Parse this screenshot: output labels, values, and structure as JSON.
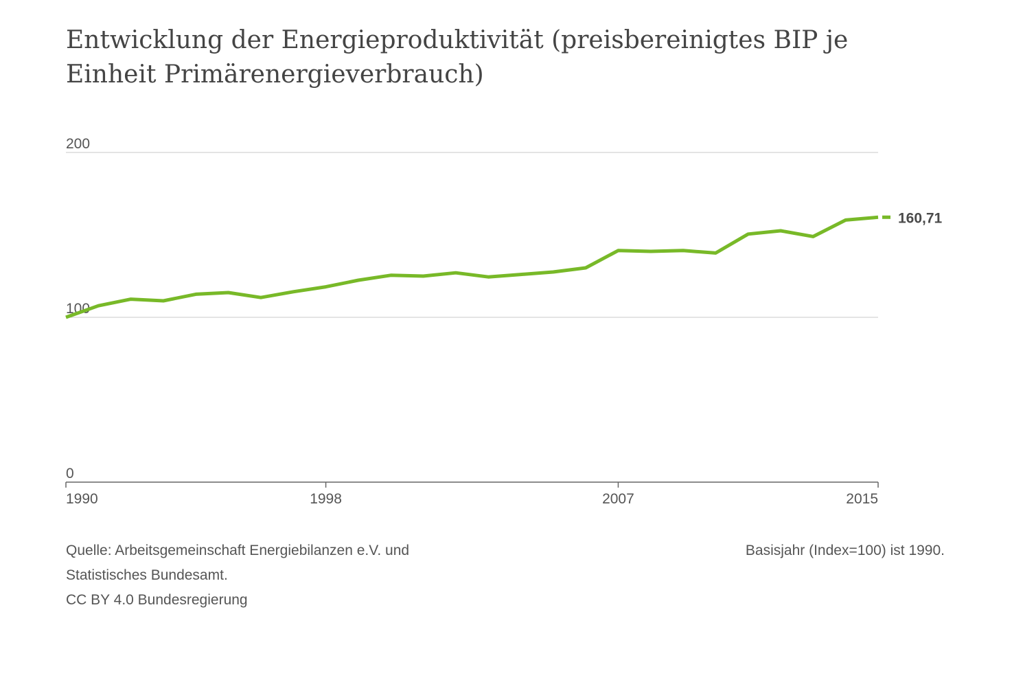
{
  "header": {
    "title": "Entwicklung der Energieproduktivität (preisbereinigtes BIP je Einheit Primärenergieverbrauch)"
  },
  "footer": {
    "source_lines": [
      "Quelle: Arbeitsgemeinschaft Energiebilanzen e.V. und",
      "Statistisches Bundesamt.",
      "CC BY 4.0 Bundesregierung"
    ],
    "basis_note": "Basisjahr (Index=100) ist 1990."
  },
  "chart_data": {
    "type": "line",
    "title": "Entwicklung der Energieproduktivität (preisbereinigtes BIP je Einheit Primärenergieverbrauch)",
    "xlabel": "",
    "ylabel": "",
    "xlim": [
      1990,
      2015
    ],
    "ylim": [
      0,
      200
    ],
    "grid": true,
    "legend": "none",
    "x_ticks": [
      1990,
      1998,
      2007,
      2015
    ],
    "x_tick_labels": [
      "1990",
      "1998",
      "2007",
      "2015"
    ],
    "y_ticks": [
      0,
      100,
      200
    ],
    "y_tick_labels": [
      "0",
      "100",
      "200"
    ],
    "line_color": "#78b928",
    "series": [
      {
        "x": [
          1990,
          1991,
          1992,
          1993,
          1994,
          1995,
          1996,
          1997,
          1998,
          1999,
          2000,
          2001,
          2002,
          2003,
          2004,
          2005,
          2006,
          2007,
          2008,
          2009,
          2010,
          2011,
          2012,
          2013,
          2014,
          2015
        ],
        "values": [
          100,
          107,
          111,
          110,
          114,
          115,
          112,
          115.5,
          118.5,
          122.5,
          125.5,
          125,
          127,
          124.5,
          126,
          127.5,
          130,
          140.5,
          140,
          140.5,
          139,
          150.5,
          152.5,
          149,
          159,
          160.71
        ]
      }
    ],
    "end_label": "160,71"
  }
}
